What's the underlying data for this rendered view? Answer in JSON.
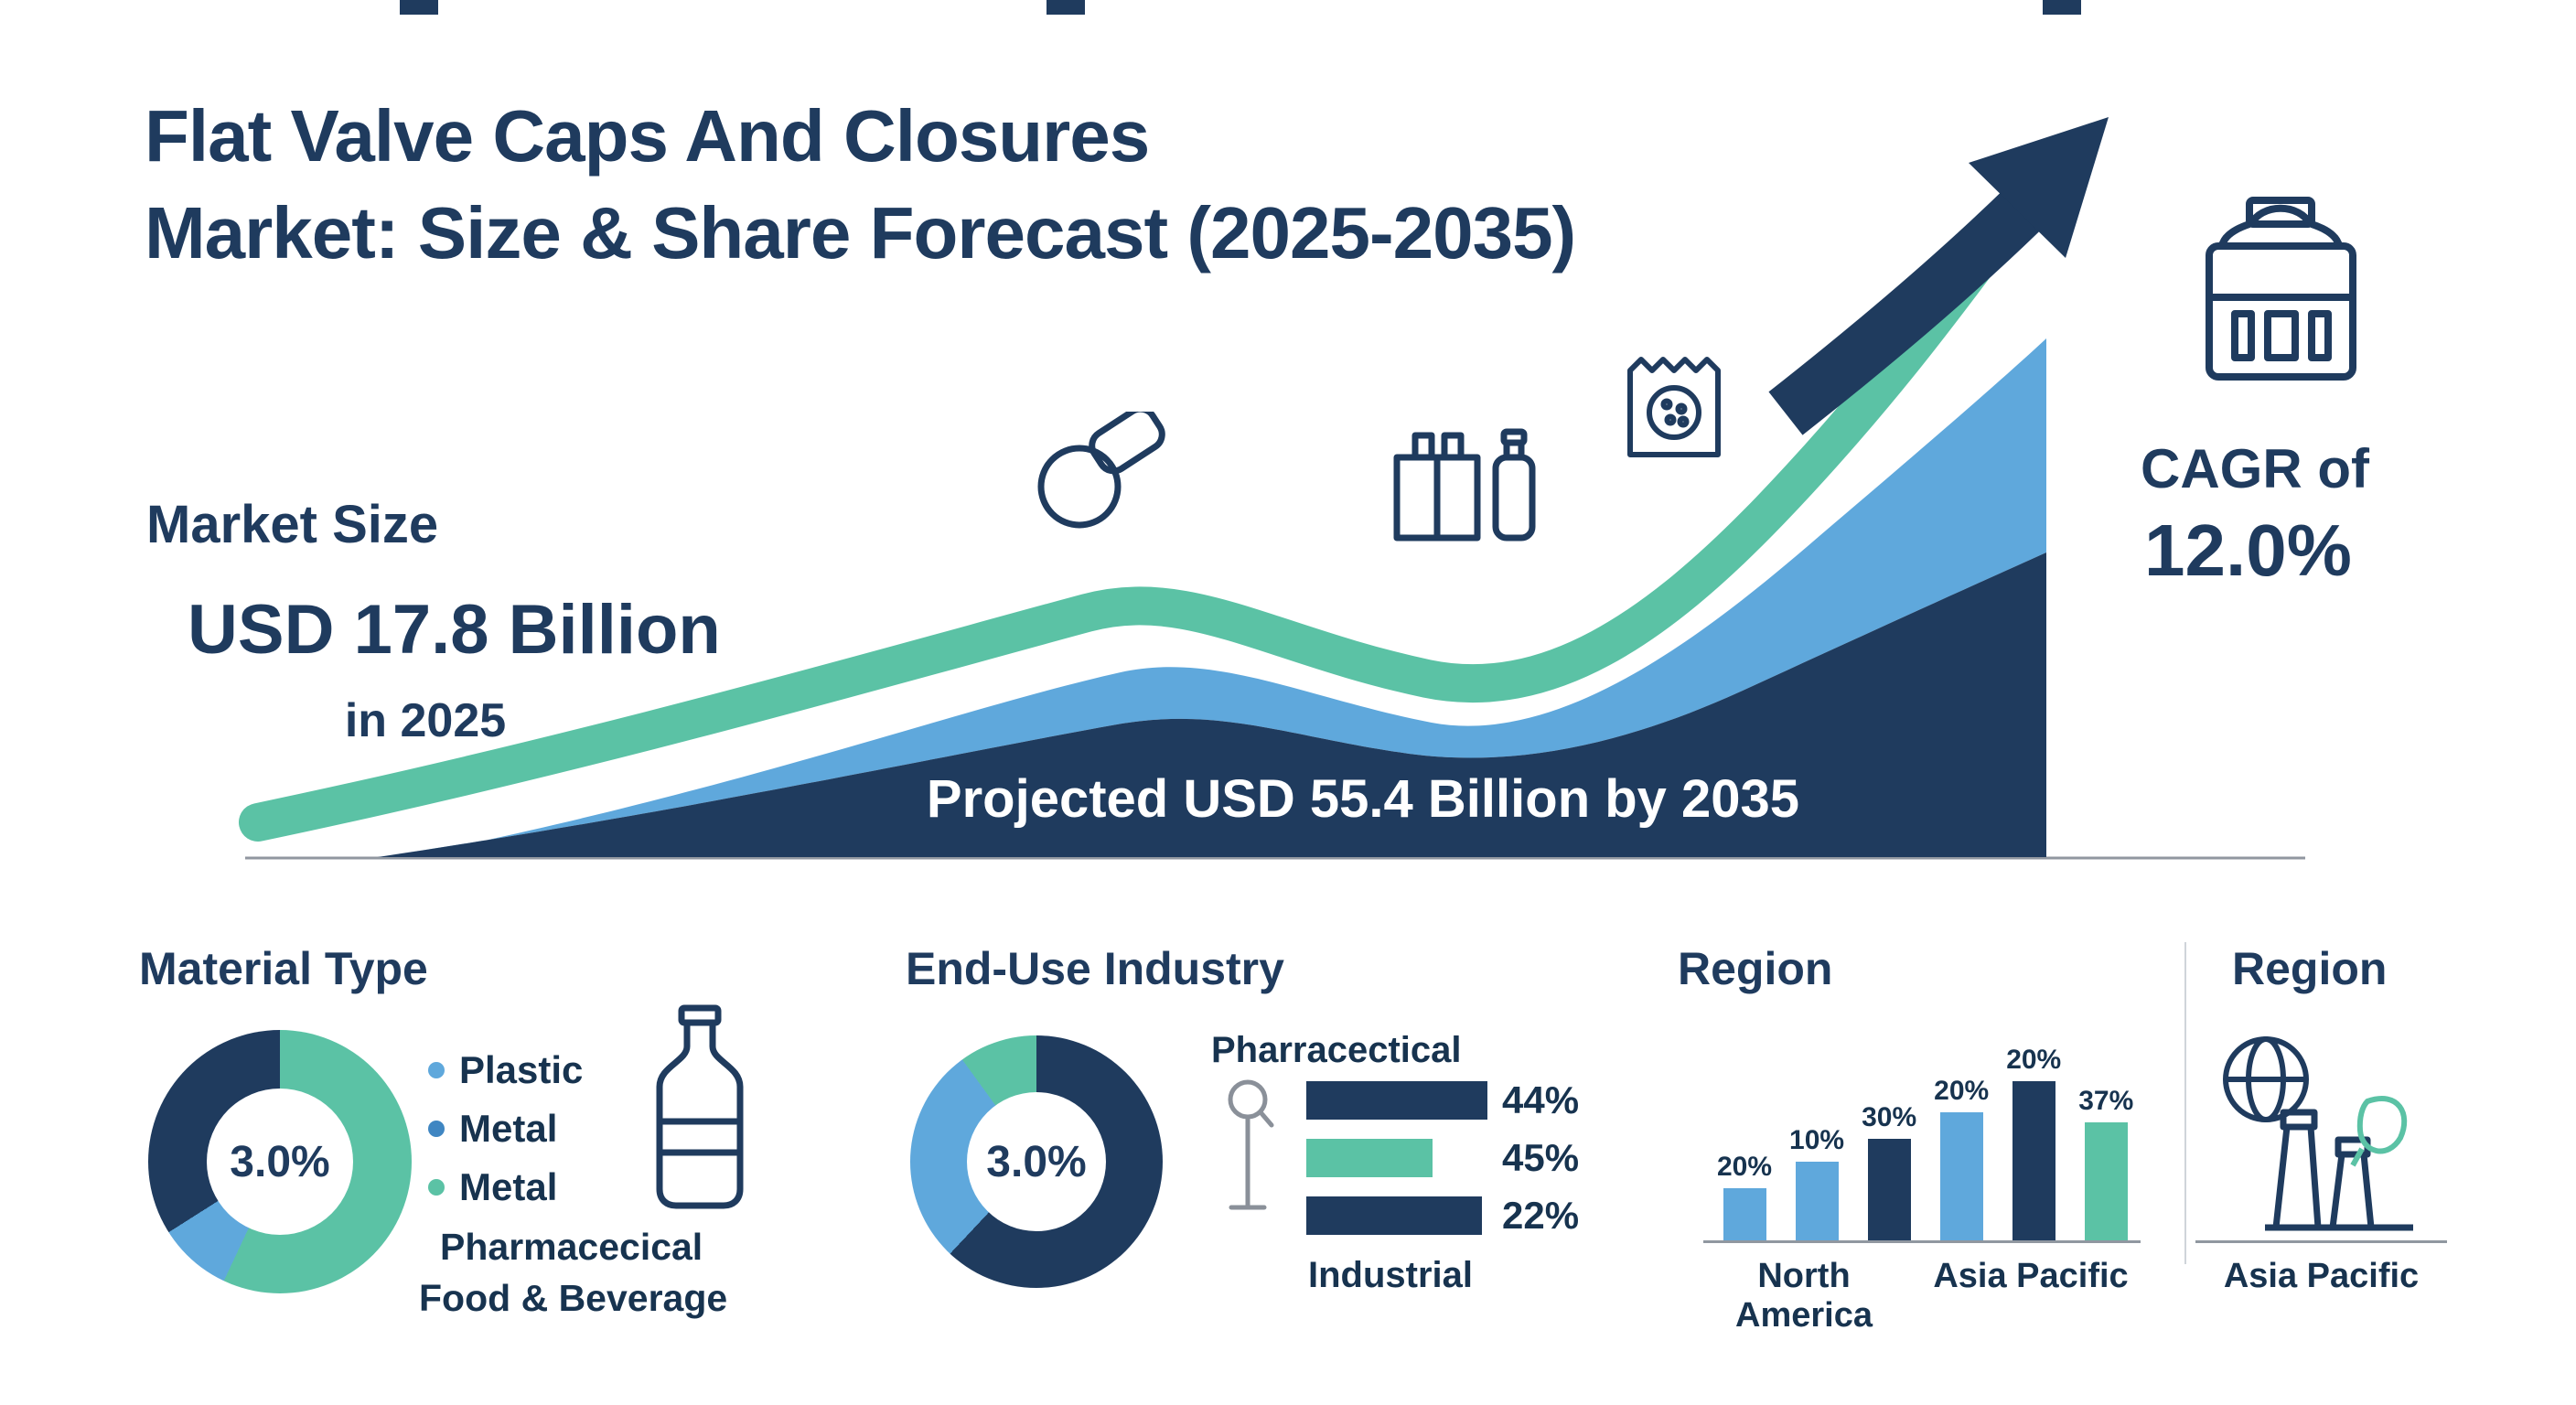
{
  "colors": {
    "navy": "#1f3b5e",
    "blue": "#5FA8DC",
    "teal": "#5BC2A5"
  },
  "header": {
    "title_line1": "Flat Valve Caps And Closures",
    "title_line2": "Market: Size & Share Forecast (2025-2035)"
  },
  "market_size": {
    "label": "Market Size",
    "value": "USD 17.8 Billion",
    "period": "in 2025"
  },
  "hero": {
    "projection": "Projected USD 55.4 Billion by 2035",
    "cagr_label": "CAGR of",
    "cagr_value": "12.0%"
  },
  "material_type": {
    "heading": "Material Type",
    "donut_center": "3.0%",
    "donut_segments": [
      {
        "color": "#5BC2A5",
        "pct": 57
      },
      {
        "color": "#5FA8DC",
        "pct": 9
      },
      {
        "color": "#1f3b5e",
        "pct": 34
      }
    ],
    "legend": [
      {
        "label": "Plastic",
        "color": "#5FA8DC"
      },
      {
        "label": "Metal",
        "color": "#3F86C2"
      },
      {
        "label": "Metal",
        "color": "#5BC2A5"
      }
    ],
    "footnote_line1": "Pharmacecical",
    "footnote_line2": "Food & Beverage"
  },
  "end_use": {
    "heading": "End-Use Industry",
    "donut_center": "3.0%",
    "donut_segments": [
      {
        "color": "#1f3b5e",
        "pct": 62
      },
      {
        "color": "#5FA8DC",
        "pct": 28
      },
      {
        "color": "#5BC2A5",
        "pct": 10
      }
    ],
    "top_label": "Pharracectical",
    "bottom_label": "Industrial",
    "bars": [
      {
        "value": "44%",
        "width": 198,
        "color": "#1f3b5e"
      },
      {
        "value": "45%",
        "width": 138,
        "color": "#5BC2A5"
      },
      {
        "value": "22%",
        "width": 192,
        "color": "#1f3b5e"
      }
    ]
  },
  "region_chart": {
    "heading": "Region",
    "bars": [
      {
        "label": "20%",
        "height": 57,
        "color": "#5FA8DC"
      },
      {
        "label": "10%",
        "height": 86,
        "color": "#5FA8DC"
      },
      {
        "label": "30%",
        "height": 111,
        "color": "#1f3b5e"
      },
      {
        "label": "20%",
        "height": 140,
        "color": "#5FA8DC"
      },
      {
        "label": "20%",
        "height": 174,
        "color": "#1f3b5e"
      },
      {
        "label": "37%",
        "height": 129,
        "color": "#5BC2A5"
      }
    ],
    "x_labels": [
      "North America",
      "Asia Pacific"
    ]
  },
  "region_profile": {
    "heading": "Region",
    "label": "Asia Pacific"
  },
  "chart_data": [
    {
      "type": "area",
      "title": "Flat Valve Caps And Closures Market: Size & Share Forecast (2025-2035)",
      "x": [
        2025,
        2035
      ],
      "series": [
        {
          "name": "Market size (USD Billion)",
          "values": [
            17.8,
            55.4
          ]
        }
      ],
      "annotations": [
        "Market Size USD 17.8 Billion in 2025",
        "Projected USD 55.4 Billion by 2035",
        "CAGR of 12.0%"
      ],
      "grid": false,
      "legend_position": "none"
    },
    {
      "type": "pie",
      "title": "Material Type",
      "center_label": "3.0%",
      "slices": [
        {
          "label": "Metal",
          "value": 57,
          "color": "#5BC2A5"
        },
        {
          "label": "Plastic",
          "value": 9,
          "color": "#5FA8DC"
        },
        {
          "label": "Metal",
          "value": 34,
          "color": "#1f3b5e"
        }
      ]
    },
    {
      "type": "pie",
      "title": "End-Use Industry",
      "center_label": "3.0%",
      "slices": [
        {
          "label": "Industrial",
          "value": 62,
          "color": "#1f3b5e"
        },
        {
          "label": "Food & Beverage",
          "value": 28,
          "color": "#5FA8DC"
        },
        {
          "label": "Pharmaceutical",
          "value": 10,
          "color": "#5BC2A5"
        }
      ]
    },
    {
      "type": "bar",
      "orientation": "horizontal",
      "title": "End-Use Industry",
      "categories": [
        "Pharracectical",
        "",
        "Industrial"
      ],
      "values": [
        44,
        45,
        22
      ]
    },
    {
      "type": "bar",
      "title": "Region",
      "categories": [
        "North America",
        "North America",
        "North America",
        "Asia Pacific",
        "Asia Pacific",
        "Asia Pacific"
      ],
      "values": [
        20,
        10,
        30,
        20,
        20,
        37
      ],
      "bar_colors": [
        "#5FA8DC",
        "#5FA8DC",
        "#1f3b5e",
        "#5FA8DC",
        "#1f3b5e",
        "#5BC2A5"
      ],
      "ylim": [
        0,
        40
      ]
    }
  ]
}
